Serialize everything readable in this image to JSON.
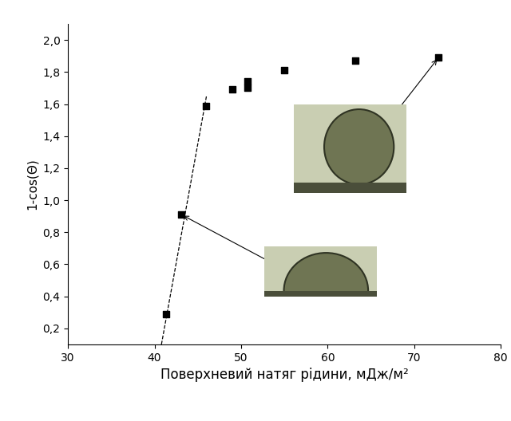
{
  "chart_data": {
    "type": "scatter",
    "x_label": "Поверхневий натяг рідини, мДж/м²",
    "y_label": "1-cos(Θ)",
    "series": [
      {
        "type": "scatter",
        "marker": "square",
        "color": "#000000",
        "x": [
          41.3,
          43.1,
          45.9,
          49.0,
          50.7,
          50.7,
          55.0,
          63.2,
          72.8
        ],
        "values": [
          0.29,
          0.91,
          1.59,
          1.69,
          1.7,
          1.74,
          1.81,
          1.87,
          1.89
        ]
      },
      {
        "type": "line",
        "line_style": "dashed",
        "color": "#000000",
        "x": [
          40.8,
          46.0
        ],
        "values": [
          0.1,
          1.65
        ]
      }
    ],
    "xlim": [
      30,
      80
    ],
    "xticks": [
      30,
      40,
      50,
      60,
      70,
      80
    ],
    "ylim": [
      0.1,
      2.1
    ],
    "yticks": [
      {
        "value": 0.2,
        "label": "0,2"
      },
      {
        "value": 0.4,
        "label": "0,4"
      },
      {
        "value": 0.6,
        "label": "0,6"
      },
      {
        "value": 0.8,
        "label": "0,8"
      },
      {
        "value": 1.0,
        "label": "1,0"
      },
      {
        "value": 1.2,
        "label": "1,2"
      },
      {
        "value": 1.4,
        "label": "1,4"
      },
      {
        "value": 1.6,
        "label": "1,6"
      },
      {
        "value": 1.8,
        "label": "1,8"
      },
      {
        "value": 2.0,
        "label": "2,0"
      }
    ],
    "grid": false
  }
}
